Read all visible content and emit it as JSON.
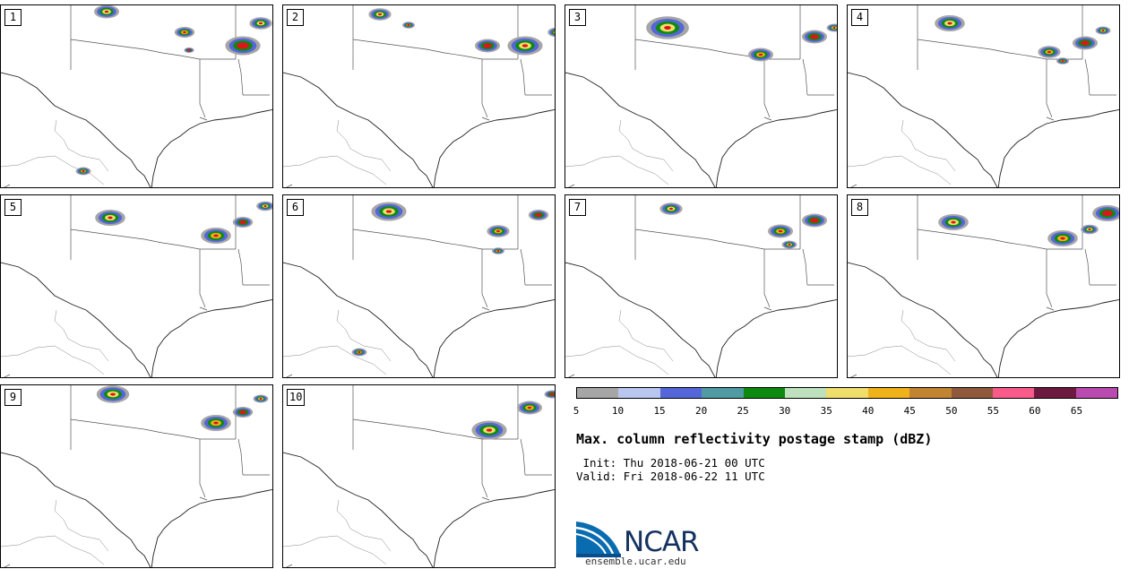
{
  "panels": [
    {
      "label": "1"
    },
    {
      "label": "2"
    },
    {
      "label": "3"
    },
    {
      "label": "4"
    },
    {
      "label": "5"
    },
    {
      "label": "6"
    },
    {
      "label": "7"
    },
    {
      "label": "8"
    },
    {
      "label": "9"
    },
    {
      "label": "10"
    }
  ],
  "colorbar": {
    "colors": [
      "#a6a6a6",
      "#b8c6f0",
      "#5566d8",
      "#4f9aa3",
      "#0e8a10",
      "#bde0bd",
      "#f0de6c",
      "#f0b21a",
      "#c08432",
      "#8f5a3c",
      "#f85a8a",
      "#6e1a40",
      "#b84ab0"
    ],
    "ticks": [
      "5",
      "10",
      "15",
      "20",
      "25",
      "30",
      "35",
      "40",
      "45",
      "50",
      "55",
      "60",
      "65"
    ]
  },
  "title": "Max. column reflectivity postage stamp (dBZ)",
  "init_line": " Init: Thu 2018-06-21 00 UTC",
  "valid_line": "Valid: Fri 2018-06-22 11 UTC",
  "logo": {
    "text": "NCAR",
    "url": "ensemble.ucar.edu"
  }
}
